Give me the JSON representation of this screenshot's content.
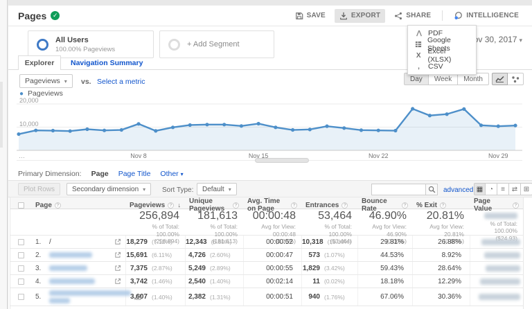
{
  "colors": {
    "accent_blue": "#1155cc",
    "chart_blue": "#4d8fc9",
    "badge_green": "#0f9d58"
  },
  "icons": {
    "caret_down": "▾",
    "sort_desc": "↓",
    "help": "?",
    "check": "✓",
    "legend_dot": "●",
    "ellipsis": "…",
    "view_table": "▦",
    "view_percentage": "◔",
    "view_performance": "≡",
    "view_comparison": "⇄",
    "view_pivot": "⊞",
    "excel_x": "X",
    "csv_comma": ","
  },
  "header": {
    "title": "Pages",
    "save": "SAVE",
    "export": "EXPORT",
    "share": "SHARE",
    "intelligence": "INTELLIGENCE",
    "date_range": "Nov 30, 2017"
  },
  "export_menu": {
    "items": [
      "PDF",
      "Google Sheets",
      "Excel (XLSX)",
      "CSV"
    ]
  },
  "segments": {
    "all_users": "All Users",
    "all_users_sub": "100.00% Pageviews",
    "add_segment": "+ Add Segment"
  },
  "tabs": {
    "explorer": "Explorer",
    "navigation_summary": "Navigation Summary"
  },
  "controls": {
    "metric_selected": "Pageviews",
    "vs": "vs.",
    "select_metric": "Select a metric",
    "day": "Day",
    "week": "Week",
    "month": "Month"
  },
  "chart_data": {
    "type": "line",
    "legend": "Pageviews",
    "color": "#4d8fc9",
    "ylim": [
      0,
      20000
    ],
    "yticks": [
      10000,
      20000
    ],
    "ytick_labels": [
      "10,000",
      "20,000"
    ],
    "tick_labels": [
      "Nov 8",
      "Nov 15",
      "Nov 22",
      "Nov 29"
    ],
    "tick_positions": [
      7,
      14,
      21,
      28
    ],
    "categories": [
      "Nov 1",
      "Nov 2",
      "Nov 3",
      "Nov 4",
      "Nov 5",
      "Nov 6",
      "Nov 7",
      "Nov 8",
      "Nov 9",
      "Nov 10",
      "Nov 11",
      "Nov 12",
      "Nov 13",
      "Nov 14",
      "Nov 15",
      "Nov 16",
      "Nov 17",
      "Nov 18",
      "Nov 19",
      "Nov 20",
      "Nov 21",
      "Nov 22",
      "Nov 23",
      "Nov 24",
      "Nov 25",
      "Nov 26",
      "Nov 27",
      "Nov 28",
      "Nov 29",
      "Nov 30"
    ],
    "series": [
      {
        "name": "Pageviews",
        "values": [
          7000,
          8600,
          8500,
          8300,
          9100,
          8600,
          8800,
          11400,
          8400,
          9900,
          10900,
          11100,
          11100,
          10500,
          11500,
          9900,
          8800,
          9000,
          10400,
          9600,
          8700,
          8600,
          8500,
          17900,
          15000,
          15600,
          17800,
          10800,
          10400,
          10700
        ]
      }
    ],
    "grid": "horizontal",
    "legend_position": "top-left"
  },
  "primary_dimension": {
    "label": "Primary Dimension:",
    "page": "Page",
    "page_title": "Page Title",
    "other": "Other"
  },
  "toolbar": {
    "plot_rows": "Plot Rows",
    "secondary_dimension": "Secondary dimension",
    "sort_type_label": "Sort Type:",
    "sort_type_value": "Default",
    "advanced": "advanced"
  },
  "table": {
    "headers": [
      "Page",
      "Pageviews",
      "Unique Pageviews",
      "Avg. Time on Page",
      "Entrances",
      "Bounce Rate",
      "% Exit",
      "Page Value"
    ],
    "totals": {
      "pageviews": "256,894",
      "pageviews_sub1": "% of Total: 100.00%",
      "pageviews_sub2": "(256,894)",
      "unique": "181,613",
      "unique_sub1": "% of Total: 100.00%",
      "unique_sub2": "(181,613)",
      "avg_time": "00:00:48",
      "avg_time_sub1": "Avg for View: 00:00:48",
      "avg_time_sub2": "(0.00%)",
      "entrances": "53,464",
      "entrances_sub1": "% of Total: 100.00%",
      "entrances_sub2": "(53,464)",
      "bounce": "46.90%",
      "bounce_sub1": "Avg for View: 46.90%",
      "bounce_sub2": "(0.00%)",
      "exit": "20.81%",
      "exit_sub1": "Avg for View: 20.81%",
      "exit_sub2": "(0.00%)",
      "page_value_sub1": "% of Total: 100.00%",
      "page_value_sub2": "($24.93)"
    },
    "rows": [
      {
        "num": "1.",
        "page": "/",
        "pageviews": "18,279",
        "pageviews_pct": "(7.12%)",
        "unique": "12,343",
        "unique_pct": "(6.80%)",
        "avg_time": "00:00:52",
        "entrances": "10,318",
        "entrances_pct": "(19.30%)",
        "bounce": "29.81%",
        "exit": "26.88%"
      },
      {
        "num": "2.",
        "pageviews": "15,691",
        "pageviews_pct": "(6.11%)",
        "unique": "4,726",
        "unique_pct": "(2.60%)",
        "avg_time": "00:00:47",
        "entrances": "573",
        "entrances_pct": "(1.07%)",
        "bounce": "44.53%",
        "exit": "8.92%"
      },
      {
        "num": "3.",
        "pageviews": "7,375",
        "pageviews_pct": "(2.87%)",
        "unique": "5,249",
        "unique_pct": "(2.89%)",
        "avg_time": "00:00:55",
        "entrances": "1,829",
        "entrances_pct": "(3.42%)",
        "bounce": "59.43%",
        "exit": "28.64%"
      },
      {
        "num": "4.",
        "pageviews": "3,742",
        "pageviews_pct": "(1.46%)",
        "unique": "2,540",
        "unique_pct": "(1.40%)",
        "avg_time": "00:02:14",
        "entrances": "11",
        "entrances_pct": "(0.02%)",
        "bounce": "18.18%",
        "exit": "12.29%"
      },
      {
        "num": "5.",
        "pageviews": "3,607",
        "pageviews_pct": "(1.40%)",
        "unique": "2,382",
        "unique_pct": "(1.31%)",
        "avg_time": "00:00:51",
        "entrances": "940",
        "entrances_pct": "(1.76%)",
        "bounce": "67.06%",
        "exit": "30.36%"
      }
    ]
  }
}
